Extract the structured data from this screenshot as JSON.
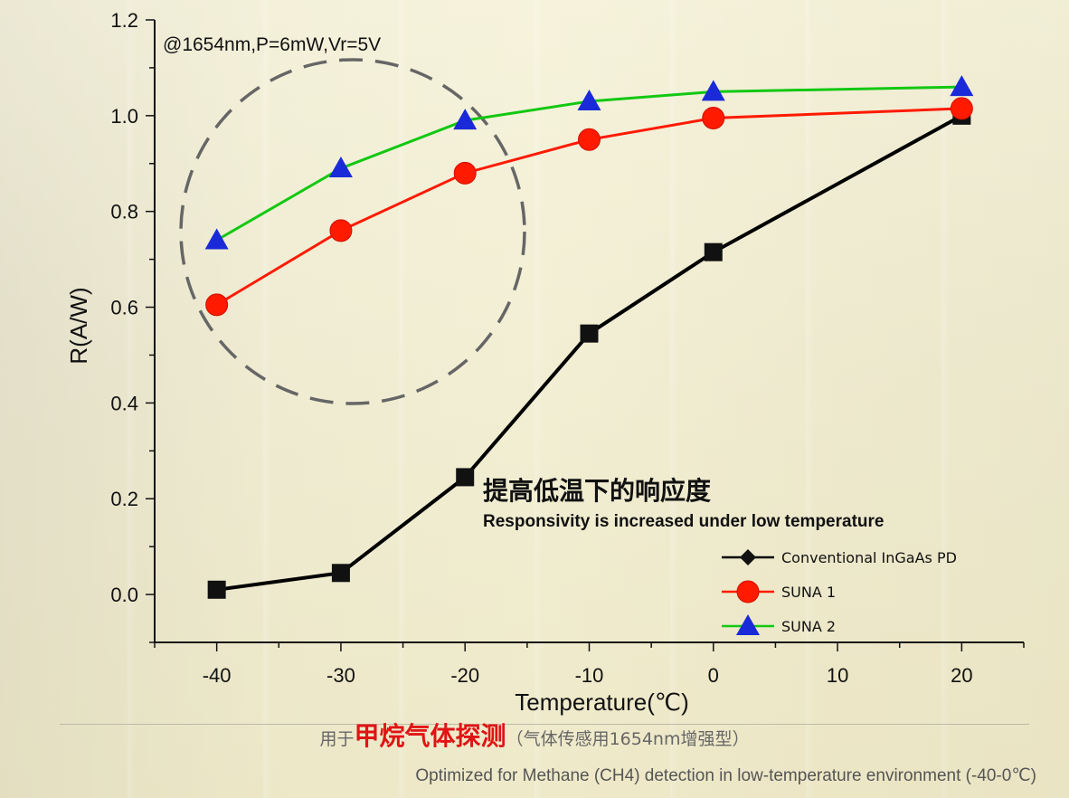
{
  "chart_data": {
    "type": "line",
    "condition_label": "@1654nm,P=6mW,Vr=5V",
    "headline_cn": "提高低温下的响应度",
    "headline_en": "Responsivity is increased under low temperature",
    "xlabel": "Temperature(℃)",
    "ylabel": "R(A/W)",
    "xlim": [
      -45,
      25
    ],
    "ylim": [
      -0.1,
      1.2
    ],
    "x_ticks": [
      -40,
      -30,
      -20,
      -10,
      0,
      10,
      20
    ],
    "y_ticks": [
      0.0,
      0.2,
      0.4,
      0.6,
      0.8,
      1.0,
      1.2
    ],
    "y_tick_labels": [
      "0.0",
      "0.2",
      "0.4",
      "0.6",
      "0.8",
      "1.0",
      "1.2"
    ],
    "x": [
      -40,
      -30,
      -20,
      -10,
      0,
      20
    ],
    "series": [
      {
        "name": "Conventional InGaAs PD",
        "color": "#000000",
        "marker": "square",
        "legend_marker": "diamond",
        "values": [
          0.01,
          0.045,
          0.245,
          0.545,
          0.715,
          1.0
        ]
      },
      {
        "name": "SUNA 1",
        "color": "#ff1a00",
        "marker": "circle",
        "values": [
          0.605,
          0.76,
          0.88,
          0.95,
          0.995,
          1.015
        ]
      },
      {
        "name": "SUNA 2",
        "color": "#12c812",
        "marker": "triangle",
        "values": [
          0.74,
          0.89,
          0.99,
          1.03,
          1.05,
          1.06
        ]
      }
    ],
    "legend_position": "bottom-right",
    "grid": false,
    "highlight": "dashed-circle around -40 to -20"
  },
  "footer": {
    "cn_prefix": "用于",
    "cn_highlight": "甲烷气体探测",
    "cn_suffix": "（气体传感用1654nm增强型）",
    "en": "Optimized for Methane (CH4) detection in low-temperature environment (-40-0℃)"
  }
}
